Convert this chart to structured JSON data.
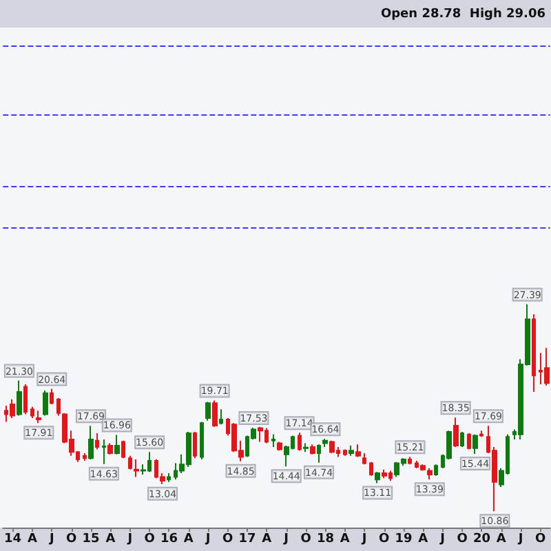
{
  "chart_data": {
    "type": "candlestick",
    "categories": [
      null,
      "14",
      null,
      null,
      "A",
      null,
      null,
      "J",
      null,
      null,
      "O",
      null,
      null,
      "15",
      null,
      null,
      "A",
      null,
      null,
      "J",
      null,
      null,
      "O",
      null,
      null,
      "16",
      null,
      null,
      "A",
      null,
      null,
      "J",
      null,
      null,
      "O",
      null,
      null,
      "17",
      null,
      null,
      "A",
      null,
      null,
      "J",
      null,
      null,
      "O",
      null,
      null,
      "18",
      null,
      null,
      "A",
      null,
      null,
      "J",
      null,
      null,
      "O",
      null,
      null,
      "19",
      null,
      null,
      "A",
      null,
      null,
      "J",
      null,
      null,
      "O",
      null,
      null,
      "20",
      null,
      null,
      "A",
      null,
      null,
      "J",
      null,
      null,
      "O",
      null
    ],
    "ohlc": [
      [
        18.9,
        19.3,
        18.0,
        18.6
      ],
      [
        19.4,
        19.8,
        18.3,
        18.5
      ],
      [
        18.6,
        21.3,
        18.5,
        20.4
      ],
      [
        20.8,
        21.0,
        18.6,
        18.8
      ],
      [
        19.0,
        19.2,
        18.3,
        18.5
      ],
      [
        18.3,
        18.9,
        17.91,
        18.2
      ],
      [
        18.6,
        20.5,
        18.5,
        20.3
      ],
      [
        20.3,
        20.64,
        19.4,
        19.5
      ],
      [
        19.8,
        19.9,
        18.5,
        18.7
      ],
      [
        18.6,
        18.7,
        16.3,
        16.4
      ],
      [
        16.6,
        17.3,
        15.3,
        15.6
      ],
      [
        15.6,
        15.6,
        14.8,
        15.0
      ],
      [
        15.3,
        15.5,
        14.9,
        15.1
      ],
      [
        15.1,
        17.69,
        15.0,
        16.6
      ],
      [
        16.5,
        17.1,
        15.8,
        16.0
      ],
      [
        16.0,
        16.6,
        14.63,
        16.05
      ],
      [
        16.1,
        16.3,
        15.4,
        15.5
      ],
      [
        15.5,
        16.96,
        15.4,
        16.1
      ],
      [
        16.4,
        16.5,
        15.1,
        15.2
      ],
      [
        15.1,
        15.3,
        14.2,
        14.3
      ],
      [
        14.2,
        15.0,
        13.6,
        14.1
      ],
      [
        14.1,
        14.6,
        13.8,
        14.15
      ],
      [
        14.1,
        15.6,
        14.0,
        14.9
      ],
      [
        14.9,
        15.0,
        13.5,
        13.6
      ],
      [
        13.6,
        13.9,
        13.04,
        13.3
      ],
      [
        13.4,
        13.9,
        13.2,
        13.6
      ],
      [
        13.6,
        14.7,
        13.4,
        14.1
      ],
      [
        14.1,
        15.4,
        13.9,
        14.6
      ],
      [
        14.6,
        17.2,
        14.4,
        17.1
      ],
      [
        17.1,
        17.2,
        15.1,
        15.3
      ],
      [
        15.2,
        18.0,
        15.0,
        17.9
      ],
      [
        18.3,
        19.6,
        18.1,
        19.5
      ],
      [
        19.5,
        19.71,
        17.6,
        17.7
      ],
      [
        17.9,
        19.0,
        17.8,
        18.2
      ],
      [
        18.2,
        18.3,
        16.9,
        17.1
      ],
      [
        17.8,
        17.9,
        15.6,
        15.7
      ],
      [
        15.7,
        16.5,
        14.85,
        15.2
      ],
      [
        15.3,
        16.9,
        15.2,
        16.8
      ],
      [
        16.7,
        17.53,
        16.6,
        17.4
      ],
      [
        17.5,
        17.6,
        16.4,
        17.3
      ],
      [
        17.3,
        17.5,
        16.3,
        16.4
      ],
      [
        16.5,
        17.0,
        16.0,
        16.6
      ],
      [
        16.3,
        16.4,
        15.7,
        15.8
      ],
      [
        15.4,
        16.1,
        14.44,
        16.0
      ],
      [
        15.9,
        16.9,
        15.8,
        16.8
      ],
      [
        16.9,
        17.14,
        15.7,
        15.8
      ],
      [
        15.9,
        16.3,
        15.6,
        15.95
      ],
      [
        16.0,
        16.2,
        15.4,
        15.5
      ],
      [
        15.5,
        16.2,
        14.74,
        16.1
      ],
      [
        16.3,
        16.64,
        16.0,
        16.5
      ],
      [
        16.4,
        16.5,
        15.5,
        15.6
      ],
      [
        15.7,
        16.0,
        15.2,
        15.5
      ],
      [
        15.7,
        15.8,
        15.3,
        15.4
      ],
      [
        15.5,
        16.1,
        15.3,
        15.7
      ],
      [
        15.6,
        16.2,
        15.2,
        15.3
      ],
      [
        15.1,
        15.5,
        14.6,
        14.7
      ],
      [
        14.7,
        14.8,
        13.7,
        13.8
      ],
      [
        13.4,
        14.0,
        13.11,
        13.9
      ],
      [
        13.9,
        14.2,
        13.5,
        13.7
      ],
      [
        13.9,
        14.1,
        13.3,
        13.5
      ],
      [
        13.8,
        14.8,
        13.6,
        14.7
      ],
      [
        14.7,
        15.1,
        14.5,
        15.0
      ],
      [
        15.0,
        15.21,
        14.6,
        14.7
      ],
      [
        14.7,
        14.9,
        14.3,
        14.4
      ],
      [
        14.5,
        14.6,
        14.1,
        14.2
      ],
      [
        14.1,
        14.3,
        13.39,
        13.8
      ],
      [
        13.8,
        14.6,
        13.7,
        14.5
      ],
      [
        14.4,
        15.4,
        14.3,
        15.3
      ],
      [
        15.1,
        17.3,
        15.0,
        17.2
      ],
      [
        17.7,
        18.35,
        16.0,
        16.1
      ],
      [
        16.1,
        17.2,
        16.0,
        17.1
      ],
      [
        17.0,
        17.1,
        15.8,
        15.9
      ],
      [
        15.9,
        17.0,
        15.44,
        16.9
      ],
      [
        17.0,
        17.3,
        16.8,
        16.9
      ],
      [
        16.8,
        17.69,
        15.5,
        15.6
      ],
      [
        15.7,
        16.0,
        10.86,
        13.2
      ],
      [
        13.0,
        14.3,
        12.8,
        14.1
      ],
      [
        13.9,
        17.0,
        13.8,
        16.8
      ],
      [
        17.0,
        17.4,
        16.6,
        17.2
      ],
      [
        17.0,
        23.0,
        16.6,
        22.6
      ],
      [
        22.6,
        27.39,
        22.5,
        26.2
      ],
      [
        26.2,
        26.6,
        20.4,
        21.7
      ],
      [
        22.1,
        23.5,
        21.0,
        22.0
      ],
      [
        22.3,
        23.9,
        20.9,
        21.1
      ]
    ],
    "ref_lines": [
      {
        "axis": "y",
        "value": 48.0,
        "color": "#3b3bf5",
        "line_style": "dashed"
      },
      {
        "axis": "y",
        "value": 42.5,
        "color": "#3b3bf5",
        "line_style": "dashed"
      },
      {
        "axis": "y",
        "value": 36.8,
        "color": "#3b3bf5",
        "line_style": "dashed"
      },
      {
        "axis": "y",
        "value": 33.5,
        "color": "#3b3bf5",
        "line_style": "dashed"
      }
    ],
    "tick_labels": "x",
    "annotations": [
      "Open 28.78  High 29.06",
      {
        "text": "21.30",
        "y": 21.3
      },
      {
        "text": "17.91",
        "y": 17.91
      },
      {
        "text": "20.64",
        "y": 20.64
      },
      {
        "text": "17.69",
        "y": 17.69
      },
      {
        "text": "14.63",
        "y": 14.63
      },
      {
        "text": "16.96",
        "y": 16.96
      },
      {
        "text": "15.60",
        "y": 15.6
      },
      {
        "text": "13.04",
        "y": 13.04
      },
      {
        "text": "19.71",
        "y": 19.71
      },
      {
        "text": "14.85",
        "y": 14.85
      },
      {
        "text": "17.53",
        "y": 17.53
      },
      {
        "text": "14.44",
        "y": 14.44
      },
      {
        "text": "17.14",
        "y": 17.14
      },
      {
        "text": "14.74",
        "y": 14.74
      },
      {
        "text": "16.64",
        "y": 16.64
      },
      {
        "text": "13.11",
        "y": 13.11
      },
      {
        "text": "15.21",
        "y": 15.21
      },
      {
        "text": "13.39",
        "y": 13.39
      },
      {
        "text": "18.35",
        "y": 18.35
      },
      {
        "text": "15.44",
        "y": 15.44
      },
      {
        "text": "17.69",
        "y": 17.69
      },
      {
        "text": "10.86",
        "y": 10.86
      },
      {
        "text": "27.39",
        "y": 27.39
      }
    ]
  }
}
